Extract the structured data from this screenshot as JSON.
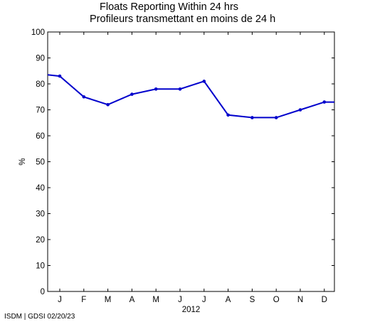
{
  "chart_data": {
    "type": "line",
    "title": "Floats Reporting Within 24 hrs",
    "subtitle": "Profileurs transmettant en moins de 24 h",
    "xlabel": "2012",
    "ylabel": "%",
    "ylim": [
      0,
      100
    ],
    "yticks": [
      0,
      10,
      20,
      30,
      40,
      50,
      60,
      70,
      80,
      90,
      100
    ],
    "categories": [
      "J",
      "F",
      "M",
      "A",
      "M",
      "J",
      "J",
      "A",
      "S",
      "O",
      "N",
      "D"
    ],
    "series": [
      {
        "color": "#0000cc",
        "values": [
          83,
          75,
          72,
          76,
          78,
          78,
          81,
          68,
          67,
          67,
          70,
          73
        ],
        "line_start_value": 83.5,
        "line_end_value": 73
      }
    ],
    "grid": false,
    "legend": "none"
  },
  "footer": "ISDM | GDSI 02/20/23"
}
